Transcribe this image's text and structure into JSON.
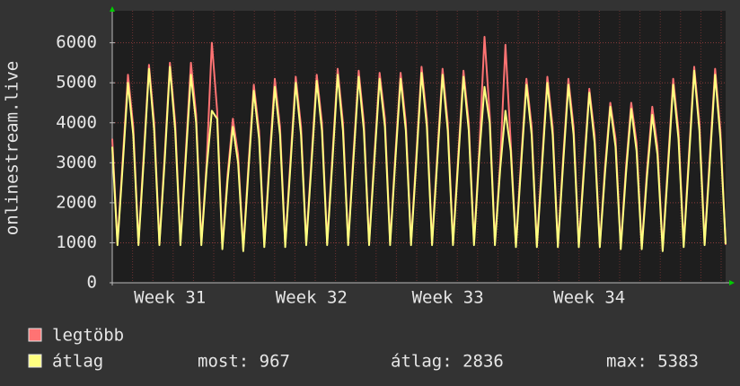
{
  "chart_data": {
    "type": "line",
    "ylabel": "onlinestream.live",
    "categories": [
      null,
      null,
      null,
      null,
      null,
      null,
      null,
      null,
      null,
      null,
      null,
      "Week 31",
      null,
      null,
      null,
      null,
      null,
      null,
      null,
      null,
      null,
      null,
      null,
      null,
      null,
      null,
      null,
      null,
      null,
      null,
      null,
      null,
      null,
      null,
      null,
      null,
      null,
      null,
      "Week 32",
      null,
      null,
      null,
      null,
      null,
      null,
      null,
      null,
      null,
      null,
      null,
      null,
      null,
      null,
      null,
      null,
      null,
      null,
      null,
      null,
      null,
      null,
      null,
      null,
      null,
      "Week 33",
      null,
      null,
      null,
      null,
      null,
      null,
      null,
      null,
      null,
      null,
      null,
      null,
      null,
      null,
      null,
      null,
      null,
      null,
      null,
      null,
      null,
      null,
      null,
      null,
      null,
      null,
      "Week 34",
      null,
      null,
      null,
      null,
      null,
      null,
      null,
      null,
      null,
      null,
      null,
      null,
      null,
      null,
      null,
      null,
      null,
      null,
      null,
      null,
      null,
      null,
      null,
      null,
      null,
      null
    ],
    "series": [
      {
        "name": "legtöbb",
        "color": "#ff7373",
        "values": [
          3600,
          1000,
          3100,
          5200,
          3900,
          1000,
          3200,
          5450,
          4000,
          1000,
          3200,
          5500,
          4000,
          1000,
          3200,
          5500,
          4200,
          1000,
          3000,
          6000,
          4300,
          900,
          2700,
          4100,
          3200,
          850,
          3000,
          4950,
          3800,
          950,
          3100,
          5100,
          3900,
          950,
          3100,
          5150,
          3900,
          1000,
          3100,
          5200,
          4000,
          1000,
          3200,
          5350,
          4000,
          1000,
          3200,
          5300,
          4000,
          1000,
          3200,
          5250,
          4100,
          1000,
          3200,
          5250,
          4000,
          1000,
          3200,
          5400,
          4100,
          1000,
          3200,
          5350,
          4000,
          1000,
          3200,
          5300,
          4000,
          1000,
          3300,
          6150,
          4200,
          1000,
          3000,
          5950,
          3500,
          950,
          3100,
          5100,
          3900,
          950,
          3100,
          5150,
          3900,
          950,
          3100,
          5100,
          3900,
          950,
          3000,
          4850,
          3700,
          950,
          2900,
          4500,
          3600,
          900,
          2900,
          4500,
          3500,
          900,
          2800,
          4400,
          3400,
          850,
          3000,
          5100,
          3800,
          950,
          3200,
          5400,
          4000,
          1000,
          3200,
          5350,
          3800,
          950
        ]
      },
      {
        "name": "átlag",
        "color": "#ffff80",
        "values": [
          3400,
          940,
          2950,
          5000,
          3700,
          940,
          3050,
          5350,
          3800,
          940,
          3050,
          5400,
          3800,
          940,
          3050,
          5200,
          4000,
          940,
          2850,
          4300,
          4100,
          840,
          2550,
          3900,
          3000,
          790,
          2850,
          4800,
          3600,
          890,
          2950,
          4900,
          3700,
          890,
          2950,
          5000,
          3700,
          940,
          2950,
          5050,
          3800,
          940,
          3050,
          5200,
          3800,
          940,
          3050,
          5150,
          3800,
          940,
          3050,
          5100,
          3900,
          940,
          3050,
          5100,
          3800,
          940,
          3050,
          5250,
          3900,
          940,
          3050,
          5200,
          3800,
          940,
          3050,
          5150,
          3800,
          940,
          3150,
          4900,
          4000,
          940,
          2850,
          4300,
          3300,
          890,
          2950,
          4950,
          3700,
          890,
          2950,
          5000,
          3700,
          890,
          2950,
          4950,
          3700,
          890,
          2850,
          4750,
          3500,
          890,
          2750,
          4400,
          3400,
          840,
          2750,
          4350,
          3300,
          840,
          2650,
          4200,
          3200,
          790,
          2850,
          4950,
          3600,
          890,
          3050,
          5300,
          3800,
          940,
          3050,
          5200,
          3600,
          967
        ]
      }
    ],
    "stats": [
      "most: 967",
      "átlag: 2836",
      "max: 5383"
    ],
    "ylim": [
      0,
      6800
    ],
    "yticks": [
      0,
      1000,
      2000,
      3000,
      4000,
      5000,
      6000
    ],
    "grid": true
  }
}
